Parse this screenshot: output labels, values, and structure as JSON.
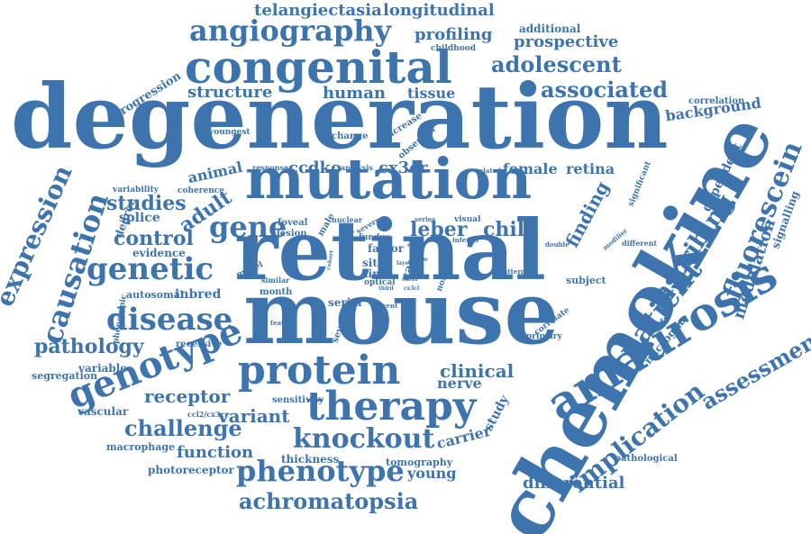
{
  "word_cloud": {
    "color": "#3d74ad",
    "background": "#ffffff",
    "words": [
      "degeneration",
      "retinal",
      "mouse",
      "chemokine",
      "mutation",
      "congenital",
      "amaurosis",
      "protein",
      "therapy",
      "genotype",
      "disease",
      "genetic",
      "causation",
      "phenotype",
      "knockout",
      "angiography",
      "gene",
      "patient",
      "expression",
      "fluorescein",
      "ascribing",
      "implication",
      "assessment",
      "challenge",
      "adolescent",
      "associated",
      "achromatopsia",
      "clinical",
      "leber",
      "child",
      "control",
      "studies",
      "adult",
      "pathology",
      "receptor",
      "variant",
      "function",
      "structure",
      "human",
      "tissue",
      "background",
      "prospective",
      "profiling",
      "longitudinal",
      "telangiectasia",
      "finding",
      "modulation",
      "differential",
      "female",
      "retina",
      "cx3cr",
      "ccdko",
      "animal",
      "nerve",
      "carrier",
      "young",
      "inbred",
      "splice",
      "evidence",
      "degree",
      "autosomal",
      "variable",
      "segregation",
      "recessive",
      "vascular",
      "macrophage",
      "photoreceptor",
      "thickness",
      "tomography",
      "sensitivity",
      "ccl2/cx3cr",
      "microglia",
      "signalling",
      "dependent",
      "significant",
      "additional",
      "childhood",
      "correlation",
      "progression",
      "youngest",
      "increase",
      "observed",
      "change",
      "response",
      "analysis",
      "related",
      "coherence",
      "variability",
      "phenotypic",
      "model",
      "month",
      "similar",
      "foveal",
      "lesion",
      "male",
      "nuclear",
      "fundus",
      "factor",
      "severe",
      "visual",
      "inferior",
      "series",
      "site",
      "line",
      "optical",
      "serial",
      "case",
      "severity",
      "study",
      "correlate",
      "primary",
      "subject",
      "pathological",
      "different",
      "modifier",
      "double",
      "pattern",
      "event",
      "feature",
      "normal",
      "defect",
      "cohort",
      "outer",
      "layer",
      "third",
      "slow",
      "exact",
      "cx3cl"
    ]
  }
}
